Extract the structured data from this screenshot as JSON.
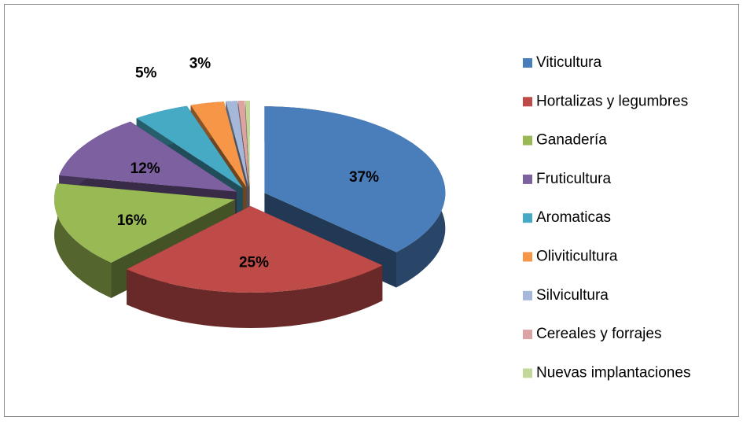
{
  "chart_data": {
    "type": "pie3d",
    "categories": [
      "Viticultura",
      "Hortalizas y legumbres",
      "Ganadería",
      "Fruticultura",
      "Aromaticas",
      "Oliviticultura",
      "Silvicultura",
      "Cereales y forrajes",
      "Nuevas implantaciones"
    ],
    "values": [
      37,
      25,
      16,
      12,
      5,
      3,
      1,
      0.6,
      0.4
    ],
    "value_labels": [
      "37%",
      "25%",
      "16%",
      "12%",
      "5%",
      "3%",
      null,
      null,
      null
    ],
    "colors": [
      "#4a7ebb",
      "#be4b48",
      "#98b954",
      "#7d60a0",
      "#46aac5",
      "#f79646",
      "#a5b8da",
      "#dca3a2",
      "#c4d79b"
    ],
    "legend": "right"
  }
}
